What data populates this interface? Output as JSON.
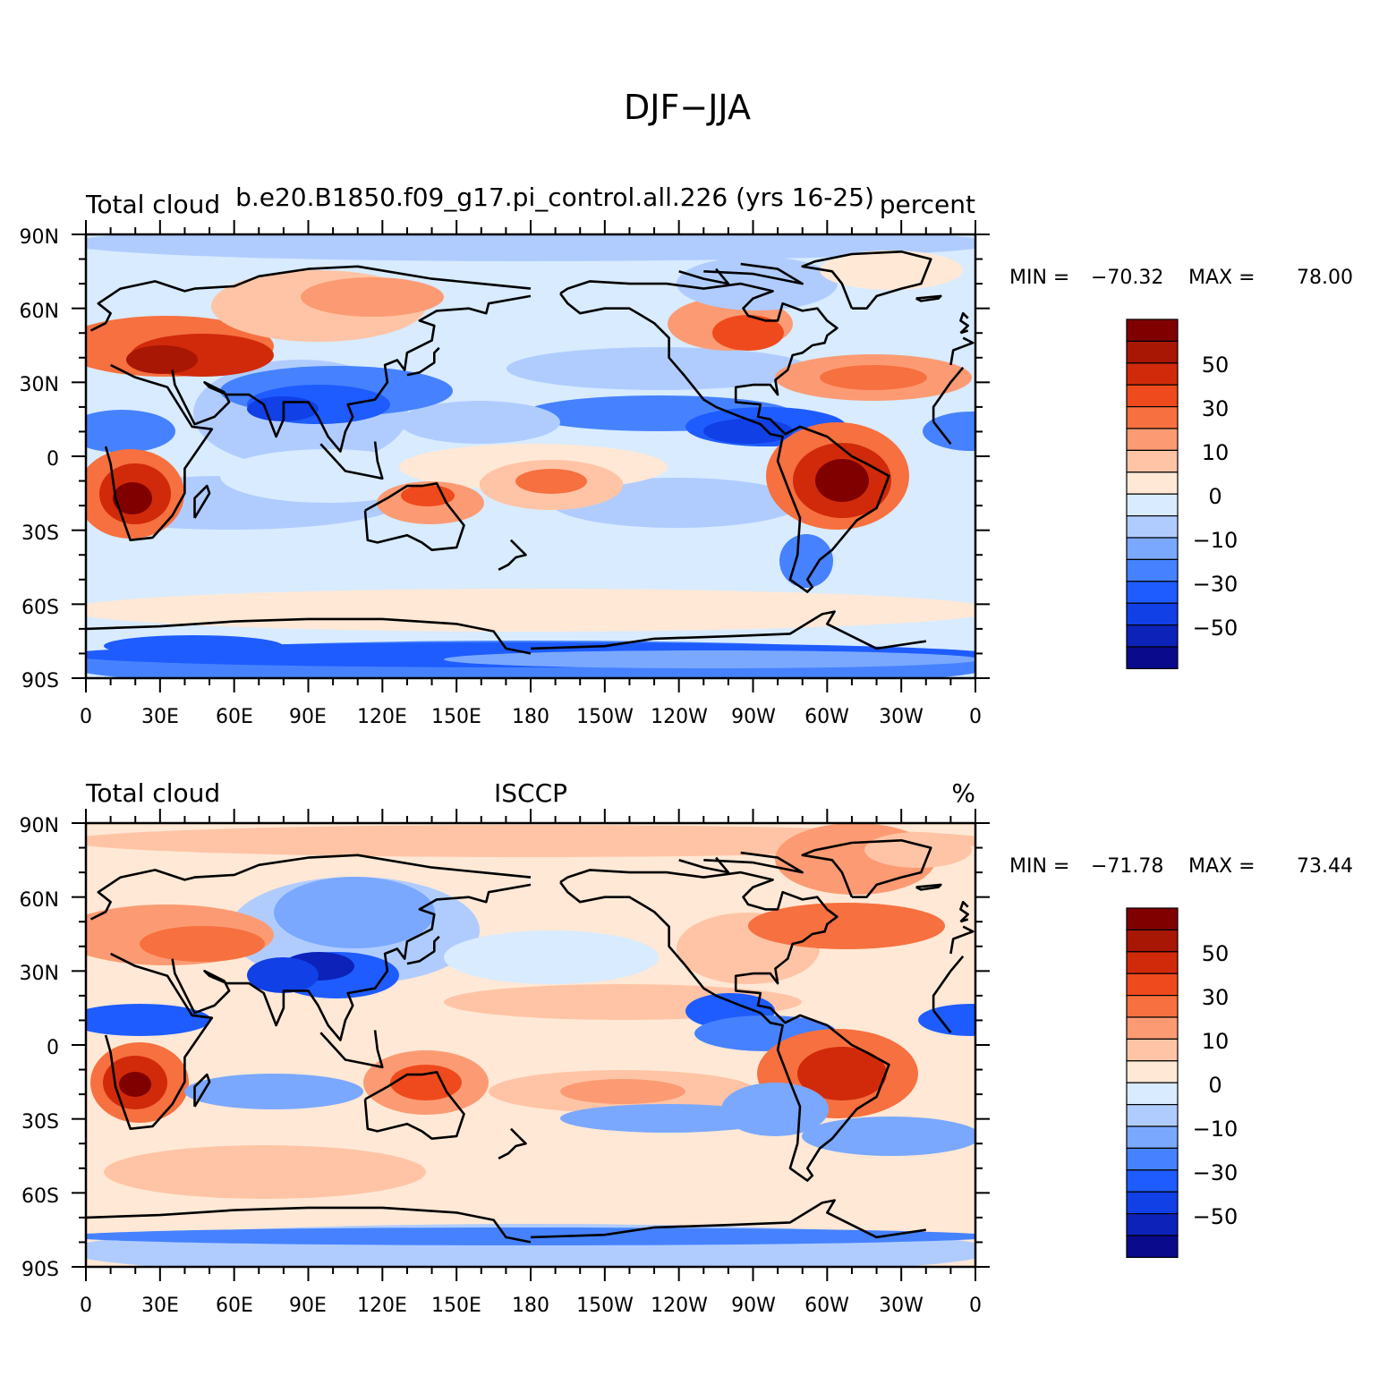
{
  "title": "DJF−JJA",
  "colors": {
    "scale": [
      "#0a0a8c",
      "#0c22b8",
      "#1040e6",
      "#1e5cff",
      "#4682ff",
      "#7aa8ff",
      "#b0ccff",
      "#d8ebff",
      "#ffe8d6",
      "#ffc4a6",
      "#fc9b73",
      "#f7703f",
      "#ef4a1d",
      "#d02a0b",
      "#a81604",
      "#800000"
    ],
    "coast": "#000000"
  },
  "colorbar": {
    "labels": [
      "50",
      "30",
      "10",
      "0",
      "−10",
      "−30",
      "−50"
    ]
  },
  "axes": {
    "lat_ticks": [
      "90N",
      "60N",
      "30N",
      "0",
      "30S",
      "60S",
      "90S"
    ],
    "lon_ticks": [
      "0",
      "30E",
      "60E",
      "90E",
      "120E",
      "150E",
      "180",
      "150W",
      "120W",
      "90W",
      "60W",
      "30W",
      "0"
    ]
  },
  "panels": [
    {
      "left_title": "Total cloud",
      "center_title": "b.e20.B1850.f09_g17.pi_control.all.226 (yrs 16-25)",
      "right_title": "percent",
      "min_label": "MIN =",
      "min_value": "−70.32",
      "max_label": "MAX =",
      "max_value": "78.00"
    },
    {
      "left_title": "Total cloud",
      "center_title": "ISCCP",
      "right_title": "%",
      "min_label": "MIN =",
      "min_value": "−71.78",
      "max_label": "MAX =",
      "max_value": "73.44"
    }
  ]
}
